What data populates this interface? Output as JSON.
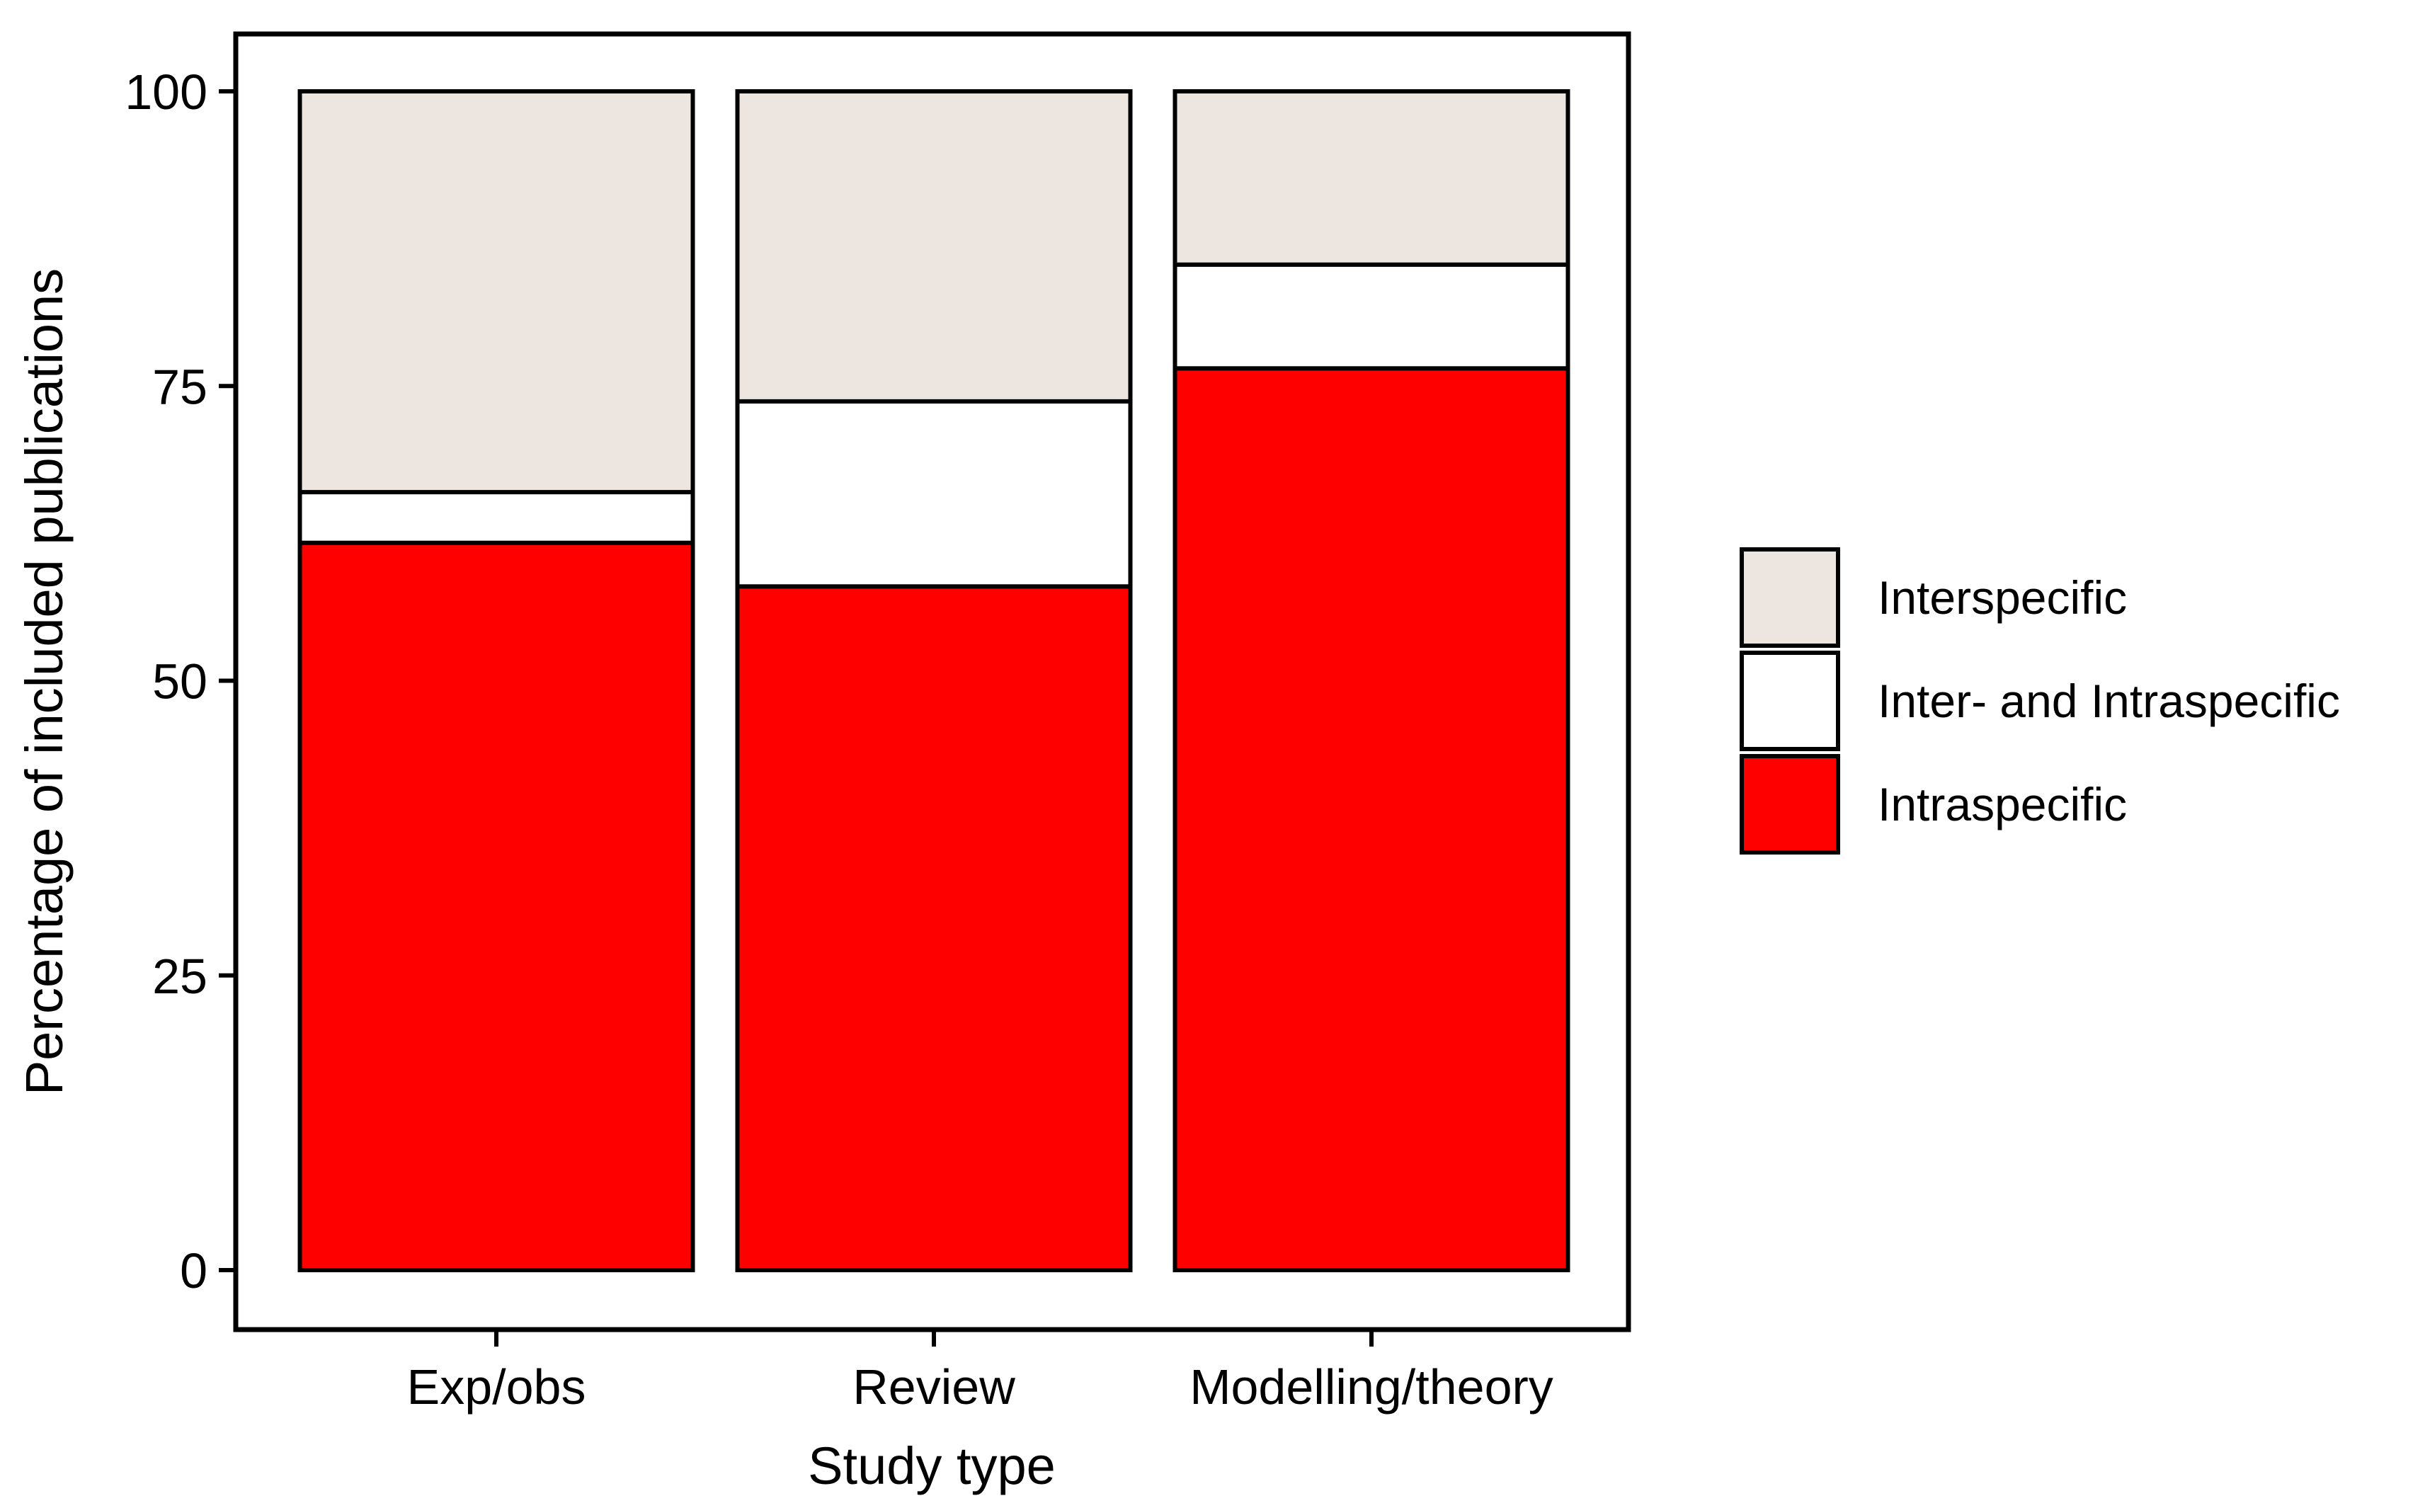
{
  "chart_data": {
    "type": "bar",
    "stacked": true,
    "categories": [
      "Exp/obs",
      "Review",
      "Modelling/theory"
    ],
    "series": [
      {
        "name": "Intraspecific",
        "color": "#ff0000",
        "values": [
          61.7,
          58.0,
          76.5
        ]
      },
      {
        "name": "Inter- and Intraspecific",
        "color": "#ffffff",
        "values": [
          4.3,
          15.7,
          8.8
        ]
      },
      {
        "name": "Interspecific",
        "color": "#ede5e0",
        "values": [
          34.0,
          26.3,
          14.7
        ]
      }
    ],
    "legend_order": [
      "Interspecific",
      "Inter- and Intraspecific",
      "Intraspecific"
    ],
    "title": "",
    "xlabel": "Study type",
    "ylabel": "Percentage of included publications",
    "ylim": [
      0,
      100
    ],
    "yticks": [
      "0",
      "25",
      "50",
      "75",
      "100"
    ],
    "grid": false,
    "legend_position": "right"
  }
}
